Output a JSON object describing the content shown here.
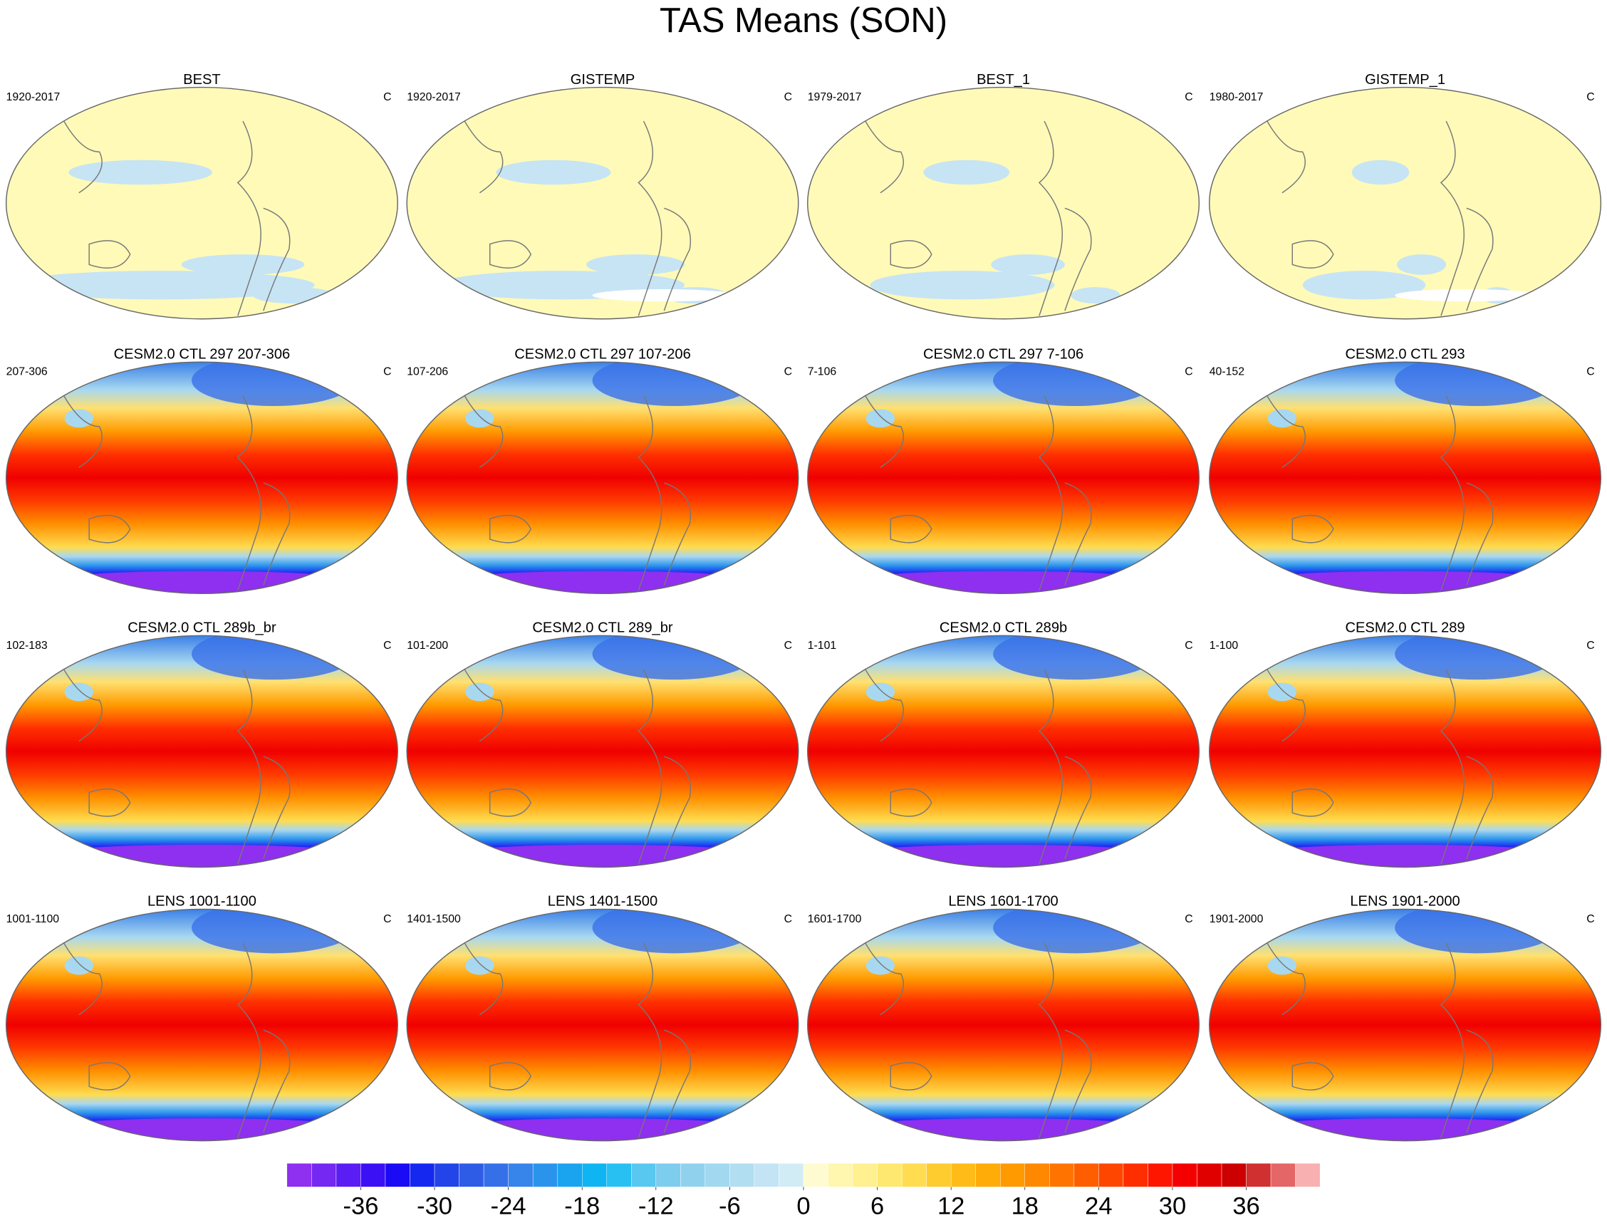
{
  "title": "TAS Means (SON)",
  "panels": [
    {
      "title": "BEST",
      "left": "1920-2017",
      "right": "C"
    },
    {
      "title": "GISTEMP",
      "left": "1920-2017",
      "right": "C"
    },
    {
      "title": "BEST_1",
      "left": "1979-2017",
      "right": "C"
    },
    {
      "title": "GISTEMP_1",
      "left": "1980-2017",
      "right": "C"
    },
    {
      "title": "CESM2.0 CTL 297 207-306",
      "left": "207-306",
      "right": "C"
    },
    {
      "title": "CESM2.0 CTL 297 107-206",
      "left": "107-206",
      "right": "C"
    },
    {
      "title": "CESM2.0 CTL 297 7-106",
      "left": "7-106",
      "right": "C"
    },
    {
      "title": "CESM2.0 CTL 293",
      "left": "40-152",
      "right": "C"
    },
    {
      "title": "CESM2.0 CTL 289b_br",
      "left": "102-183",
      "right": "C"
    },
    {
      "title": "CESM2.0 CTL 289_br",
      "left": "101-200",
      "right": "C"
    },
    {
      "title": "CESM2.0 CTL 289b",
      "left": "1-101",
      "right": "C"
    },
    {
      "title": "CESM2.0 CTL 289",
      "left": "1-100",
      "right": "C"
    },
    {
      "title": "LENS 1001-1100",
      "left": "1001-1100",
      "right": "C"
    },
    {
      "title": "LENS 1401-1500",
      "left": "1401-1500",
      "right": "C"
    },
    {
      "title": "LENS 1601-1700",
      "left": "1601-1700",
      "right": "C"
    },
    {
      "title": "LENS 1901-2000",
      "left": "1901-2000",
      "right": "C"
    }
  ],
  "colorbar": {
    "lim": [
      -42,
      42
    ],
    "ticks": [
      -36,
      -30,
      -24,
      -18,
      -12,
      -6,
      0,
      6,
      12,
      18,
      24,
      30,
      36
    ],
    "colors": [
      "#8f2ff0",
      "#7428f2",
      "#5a1ef5",
      "#3c10f5",
      "#1a0af5",
      "#1428f0",
      "#2244e8",
      "#2e5ce6",
      "#3570e8",
      "#3784ea",
      "#2a94ec",
      "#1aa4f0",
      "#0fb4f2",
      "#28c0f2",
      "#58c8f0",
      "#7ccdee",
      "#90d2ee",
      "#a2d8f0",
      "#b2def2",
      "#c2e4f4",
      "#d2ecf6",
      "#fffbd0",
      "#fff6b0",
      "#fff090",
      "#ffe870",
      "#ffdc50",
      "#ffcc30",
      "#ffbc18",
      "#ffac08",
      "#ff9a00",
      "#ff8800",
      "#ff7400",
      "#ff5e00",
      "#ff4600",
      "#ff2e00",
      "#ff1600",
      "#f40000",
      "#e00000",
      "#cc0000",
      "#d03030",
      "#e46666",
      "#f8b0b0"
    ]
  }
}
